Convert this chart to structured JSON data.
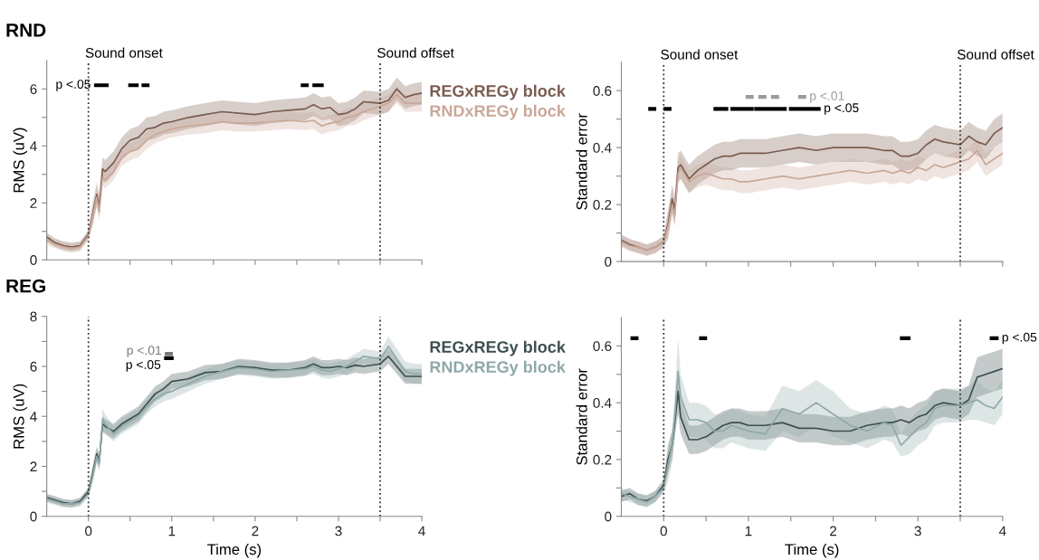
{
  "chart_data": [
    {
      "type": "line",
      "title": "RND",
      "ylabel": "RMS (uV)",
      "legend": "right",
      "tick_labels": "y",
      "xlim": [
        -0.5,
        4
      ],
      "ylim": [
        0,
        7
      ],
      "xticks": [
        0,
        0.5,
        1,
        1.5,
        2,
        2.5,
        3,
        3.5,
        4
      ],
      "yticks": [
        0,
        {
          "value": 1,
          "label": null
        },
        2,
        {
          "value": 3,
          "label": null
        },
        4,
        {
          "value": 5,
          "label": null
        },
        6
      ],
      "x": [
        -0.5,
        -0.4,
        -0.3,
        -0.2,
        -0.1,
        0,
        0.05,
        0.1,
        0.13,
        0.17,
        0.2,
        0.3,
        0.4,
        0.5,
        0.6,
        0.7,
        0.8,
        0.9,
        1.0,
        1.2,
        1.4,
        1.6,
        1.8,
        2.0,
        2.2,
        2.4,
        2.6,
        2.7,
        2.8,
        2.9,
        3.0,
        3.1,
        3.2,
        3.3,
        3.5,
        3.6,
        3.7,
        3.8,
        3.9,
        4.0
      ],
      "series": [
        {
          "name": "REGxREGy block",
          "color": "#7a5c4f",
          "values": [
            0.8,
            0.6,
            0.5,
            0.45,
            0.5,
            0.9,
            1.6,
            2.3,
            1.9,
            3.2,
            3.1,
            3.4,
            3.9,
            4.2,
            4.3,
            4.6,
            4.65,
            4.8,
            4.85,
            5.0,
            5.1,
            5.2,
            5.15,
            5.1,
            5.2,
            5.25,
            5.3,
            5.45,
            5.3,
            5.35,
            5.1,
            5.15,
            5.3,
            5.55,
            5.5,
            5.6,
            6.0,
            5.7,
            5.8,
            5.85
          ],
          "lower": [
            0.65,
            0.45,
            0.35,
            0.3,
            0.35,
            0.75,
            1.2,
            1.9,
            1.5,
            2.8,
            2.7,
            3.0,
            3.5,
            3.8,
            3.9,
            4.2,
            4.25,
            4.4,
            4.45,
            4.6,
            4.7,
            4.8,
            4.75,
            4.7,
            4.8,
            4.85,
            4.9,
            5.05,
            4.9,
            4.95,
            4.7,
            4.75,
            4.9,
            5.15,
            5.1,
            5.2,
            5.6,
            5.3,
            5.4,
            5.45
          ],
          "upper": [
            0.95,
            0.75,
            0.65,
            0.6,
            0.65,
            1.05,
            2.0,
            2.7,
            2.3,
            3.6,
            3.5,
            3.8,
            4.3,
            4.6,
            4.7,
            5.0,
            5.05,
            5.2,
            5.25,
            5.4,
            5.5,
            5.6,
            5.55,
            5.5,
            5.6,
            5.65,
            5.7,
            5.85,
            5.7,
            5.75,
            5.5,
            5.55,
            5.7,
            5.95,
            5.9,
            6.0,
            6.4,
            6.1,
            6.2,
            6.25
          ]
        },
        {
          "name": "RNDxREGy block",
          "color": "#c9a797",
          "values": [
            0.7,
            0.55,
            0.45,
            0.4,
            0.45,
            0.85,
            1.5,
            2.2,
            1.7,
            2.9,
            2.8,
            3.1,
            3.6,
            3.8,
            3.9,
            4.2,
            4.4,
            4.5,
            4.6,
            4.7,
            4.75,
            4.85,
            4.8,
            4.8,
            4.85,
            4.9,
            4.85,
            4.9,
            4.7,
            4.8,
            4.85,
            5.0,
            5.05,
            5.2,
            5.4,
            5.5,
            5.8,
            5.5,
            5.5,
            5.5
          ],
          "lower": [
            0.55,
            0.4,
            0.3,
            0.25,
            0.3,
            0.7,
            1.2,
            1.9,
            1.4,
            2.6,
            2.5,
            2.8,
            3.3,
            3.5,
            3.6,
            3.9,
            4.1,
            4.2,
            4.3,
            4.4,
            4.45,
            4.55,
            4.5,
            4.5,
            4.55,
            4.6,
            4.55,
            4.6,
            4.4,
            4.5,
            4.55,
            4.7,
            4.75,
            4.9,
            5.1,
            5.2,
            5.5,
            5.2,
            5.2,
            5.2
          ],
          "upper": [
            0.85,
            0.7,
            0.6,
            0.55,
            0.6,
            1.0,
            1.8,
            2.5,
            2.0,
            3.2,
            3.1,
            3.4,
            3.9,
            4.1,
            4.2,
            4.5,
            4.7,
            4.8,
            4.9,
            5.0,
            5.05,
            5.15,
            5.1,
            5.1,
            5.15,
            5.2,
            5.15,
            5.2,
            5.0,
            5.1,
            5.15,
            5.3,
            5.35,
            5.5,
            5.7,
            5.8,
            6.1,
            5.8,
            5.8,
            5.8
          ]
        },
        {
          "name": "p <.05",
          "color": "#000000",
          "x": [
            0.09,
            0.14,
            0.155,
            0.17,
            0.22,
            0.3,
            0.5,
            0.58,
            0.62,
            0.66,
            0.71,
            1.5,
            2.57,
            2.62,
            2.66,
            2.71,
            2.8
          ],
          "values": [
            6.13,
            6.13,
            null,
            6.13,
            6.13,
            null,
            6.13,
            6.13,
            null,
            6.13,
            6.13,
            null,
            6.13,
            6.13,
            null,
            6.13,
            6.13
          ]
        }
      ],
      "ref_lines": [
        {
          "axis": "x",
          "value": 0,
          "label": "Sound onset",
          "color": "#333333",
          "line_style": "dotted"
        },
        {
          "axis": "x",
          "value": 3.5,
          "label": "Sound offset",
          "color": "#333333",
          "line_style": "dotted"
        }
      ]
    },
    {
      "type": "line",
      "ylabel": "Standard error",
      "tick_labels": "y",
      "xlim": [
        -0.5,
        4
      ],
      "ylim": [
        0,
        0.7
      ],
      "xticks": [
        0,
        0.5,
        1,
        1.5,
        2,
        2.5,
        3,
        3.5,
        4
      ],
      "yticks": [
        0,
        {
          "value": 0.1,
          "label": null
        },
        0.2,
        {
          "value": 0.3,
          "label": null
        },
        0.4,
        {
          "value": 0.5,
          "label": null
        },
        0.6
      ],
      "x": [
        -0.5,
        -0.4,
        -0.3,
        -0.2,
        -0.1,
        0,
        0.05,
        0.1,
        0.13,
        0.17,
        0.2,
        0.3,
        0.4,
        0.5,
        0.6,
        0.7,
        0.8,
        0.9,
        1.0,
        1.2,
        1.4,
        1.6,
        1.8,
        2.0,
        2.2,
        2.4,
        2.6,
        2.7,
        2.8,
        2.9,
        3.0,
        3.1,
        3.2,
        3.3,
        3.5,
        3.6,
        3.7,
        3.8,
        3.9,
        4.0
      ],
      "series": [
        {
          "color": "#7a5c4f",
          "values": [
            0.075,
            0.06,
            0.05,
            0.04,
            0.05,
            0.07,
            0.13,
            0.22,
            0.18,
            0.33,
            0.34,
            0.29,
            0.32,
            0.34,
            0.36,
            0.37,
            0.37,
            0.38,
            0.38,
            0.38,
            0.39,
            0.4,
            0.39,
            0.4,
            0.4,
            0.4,
            0.39,
            0.39,
            0.37,
            0.37,
            0.38,
            0.41,
            0.43,
            0.42,
            0.41,
            0.44,
            0.42,
            0.41,
            0.45,
            0.47
          ],
          "lower": [
            0.055,
            0.04,
            0.03,
            0.02,
            0.03,
            0.05,
            0.08,
            0.17,
            0.13,
            0.28,
            0.29,
            0.24,
            0.27,
            0.29,
            0.31,
            0.32,
            0.32,
            0.33,
            0.33,
            0.33,
            0.34,
            0.35,
            0.34,
            0.35,
            0.35,
            0.35,
            0.34,
            0.34,
            0.32,
            0.32,
            0.33,
            0.36,
            0.38,
            0.37,
            0.36,
            0.39,
            0.37,
            0.36,
            0.4,
            0.42
          ],
          "upper": [
            0.095,
            0.08,
            0.07,
            0.06,
            0.07,
            0.09,
            0.18,
            0.27,
            0.23,
            0.38,
            0.39,
            0.34,
            0.37,
            0.39,
            0.41,
            0.42,
            0.42,
            0.43,
            0.43,
            0.43,
            0.44,
            0.45,
            0.44,
            0.45,
            0.45,
            0.45,
            0.44,
            0.44,
            0.42,
            0.42,
            0.43,
            0.46,
            0.48,
            0.47,
            0.46,
            0.49,
            0.47,
            0.46,
            0.5,
            0.52
          ]
        },
        {
          "color": "#c9a797",
          "values": [
            0.07,
            0.055,
            0.05,
            0.04,
            0.05,
            0.07,
            0.12,
            0.2,
            0.16,
            0.31,
            0.33,
            0.28,
            0.3,
            0.31,
            0.3,
            0.29,
            0.29,
            0.28,
            0.28,
            0.29,
            0.3,
            0.29,
            0.3,
            0.31,
            0.32,
            0.31,
            0.32,
            0.31,
            0.32,
            0.31,
            0.33,
            0.32,
            0.34,
            0.33,
            0.35,
            0.36,
            0.39,
            0.34,
            0.36,
            0.38
          ],
          "lower": [
            0.05,
            0.035,
            0.03,
            0.02,
            0.03,
            0.05,
            0.08,
            0.16,
            0.12,
            0.27,
            0.29,
            0.24,
            0.26,
            0.27,
            0.26,
            0.25,
            0.25,
            0.24,
            0.24,
            0.25,
            0.26,
            0.25,
            0.26,
            0.27,
            0.28,
            0.27,
            0.28,
            0.27,
            0.28,
            0.27,
            0.29,
            0.28,
            0.3,
            0.29,
            0.31,
            0.32,
            0.35,
            0.3,
            0.32,
            0.34
          ],
          "upper": [
            0.09,
            0.075,
            0.07,
            0.06,
            0.07,
            0.09,
            0.16,
            0.24,
            0.2,
            0.35,
            0.37,
            0.32,
            0.34,
            0.35,
            0.34,
            0.33,
            0.33,
            0.32,
            0.32,
            0.33,
            0.34,
            0.33,
            0.34,
            0.35,
            0.36,
            0.35,
            0.36,
            0.35,
            0.36,
            0.35,
            0.37,
            0.36,
            0.38,
            0.37,
            0.39,
            0.4,
            0.43,
            0.38,
            0.4,
            0.42
          ]
        },
        {
          "name": "p <.01",
          "color": "#9a9a9a",
          "x": [
            0.99,
            1.04,
            1.1,
            1.14,
            1.19,
            1.25,
            1.29,
            1.34,
            1.5,
            1.61,
            1.66
          ],
          "values": [
            0.578,
            0.578,
            null,
            0.578,
            0.578,
            null,
            0.578,
            0.578,
            null,
            0.578,
            0.578
          ]
        },
        {
          "name": "p <.05",
          "color": "#000000",
          "x": [
            -0.16,
            -0.11,
            0,
            0.02,
            0.07,
            0.3,
            0.61,
            0.74,
            0.78,
            0.81,
            1.04,
            1.06,
            1.09,
            1.43,
            1.46,
            1.5,
            1.58,
            1.6,
            1.61,
            1.83
          ],
          "values": [
            0.536,
            0.536,
            null,
            0.536,
            0.536,
            null,
            0.536,
            0.536,
            null,
            0.536,
            0.536,
            null,
            0.536,
            0.536,
            null,
            0.536,
            0.536,
            null,
            0.536,
            0.536
          ]
        }
      ],
      "ref_lines": [
        {
          "axis": "x",
          "value": 0,
          "label": "Sound onset",
          "color": "#333333",
          "line_style": "dotted"
        },
        {
          "axis": "x",
          "value": 3.5,
          "label": "Sound offset",
          "color": "#333333",
          "line_style": "dotted"
        }
      ]
    },
    {
      "type": "line",
      "title": "REG",
      "ylabel": "RMS (uV)",
      "xlabel": "Time (s)",
      "legend": "right",
      "xlim": [
        -0.5,
        4
      ],
      "ylim": [
        0,
        8
      ],
      "xticks": [
        0,
        {
          "value": 0.5,
          "label": null
        },
        1,
        {
          "value": 1.5,
          "label": null
        },
        2,
        {
          "value": 2.5,
          "label": null
        },
        3,
        {
          "value": 3.5,
          "label": null
        },
        4
      ],
      "yticks": [
        0,
        {
          "value": 1,
          "label": null
        },
        2,
        {
          "value": 3,
          "label": null
        },
        4,
        {
          "value": 5,
          "label": null
        },
        6,
        {
          "value": 7,
          "label": null
        },
        8
      ],
      "x": [
        -0.5,
        -0.4,
        -0.3,
        -0.2,
        -0.1,
        0,
        0.05,
        0.1,
        0.13,
        0.17,
        0.2,
        0.3,
        0.4,
        0.5,
        0.6,
        0.7,
        0.8,
        0.9,
        1.0,
        1.2,
        1.4,
        1.6,
        1.8,
        2.0,
        2.2,
        2.4,
        2.6,
        2.7,
        2.8,
        2.9,
        3.0,
        3.1,
        3.2,
        3.3,
        3.5,
        3.6,
        3.7,
        3.8,
        3.9,
        4.0
      ],
      "series": [
        {
          "name": "REGxREGy block",
          "color": "#3d4f4f",
          "values": [
            0.75,
            0.65,
            0.55,
            0.5,
            0.6,
            1.0,
            1.7,
            2.5,
            2.2,
            3.7,
            3.6,
            3.4,
            3.7,
            3.9,
            4.1,
            4.5,
            4.9,
            5.1,
            5.4,
            5.5,
            5.75,
            5.8,
            6.0,
            5.95,
            5.85,
            5.85,
            5.95,
            6.1,
            5.95,
            5.95,
            6.0,
            5.95,
            6.05,
            6.0,
            6.1,
            6.4,
            6.0,
            5.6,
            5.6,
            5.6
          ],
          "lower": [
            0.6,
            0.5,
            0.4,
            0.35,
            0.45,
            0.85,
            1.4,
            2.2,
            1.9,
            3.4,
            3.3,
            3.1,
            3.4,
            3.6,
            3.8,
            4.2,
            4.6,
            4.8,
            5.1,
            5.2,
            5.45,
            5.5,
            5.7,
            5.65,
            5.55,
            5.55,
            5.65,
            5.8,
            5.65,
            5.65,
            5.7,
            5.65,
            5.75,
            5.7,
            5.8,
            6.1,
            5.7,
            5.3,
            5.3,
            5.3
          ],
          "upper": [
            0.9,
            0.8,
            0.7,
            0.65,
            0.75,
            1.15,
            2.0,
            2.8,
            2.5,
            4.0,
            3.9,
            3.7,
            4.0,
            4.2,
            4.4,
            4.8,
            5.2,
            5.4,
            5.7,
            5.8,
            6.05,
            6.1,
            6.3,
            6.25,
            6.15,
            6.15,
            6.25,
            6.4,
            6.25,
            6.25,
            6.3,
            6.25,
            6.35,
            6.3,
            6.4,
            6.7,
            6.3,
            5.9,
            5.9,
            5.9
          ]
        },
        {
          "name": "RNDxREGy block",
          "color": "#8fa8a8",
          "values": [
            0.7,
            0.6,
            0.5,
            0.5,
            0.55,
            0.9,
            1.6,
            2.4,
            2.1,
            3.9,
            3.7,
            3.3,
            3.6,
            3.8,
            4.0,
            4.4,
            4.7,
            4.9,
            5.0,
            5.3,
            5.6,
            5.8,
            5.95,
            5.9,
            5.8,
            5.85,
            5.9,
            6.0,
            5.85,
            5.8,
            5.9,
            6.0,
            6.2,
            6.4,
            6.3,
            6.8,
            6.3,
            5.8,
            5.7,
            5.7
          ],
          "lower": [
            0.55,
            0.45,
            0.35,
            0.35,
            0.4,
            0.75,
            1.3,
            2.1,
            1.8,
            3.5,
            3.3,
            3.0,
            3.3,
            3.5,
            3.7,
            4.1,
            4.4,
            4.6,
            4.7,
            5.0,
            5.3,
            5.5,
            5.65,
            5.6,
            5.5,
            5.55,
            5.6,
            5.7,
            5.55,
            5.5,
            5.6,
            5.7,
            5.9,
            6.1,
            6.0,
            6.4,
            5.9,
            5.4,
            5.3,
            5.3
          ],
          "upper": [
            0.85,
            0.75,
            0.65,
            0.65,
            0.7,
            1.05,
            1.9,
            2.7,
            2.4,
            4.3,
            4.1,
            3.6,
            3.9,
            4.1,
            4.3,
            4.7,
            5.0,
            5.2,
            5.3,
            5.6,
            5.9,
            6.1,
            6.25,
            6.2,
            6.1,
            6.15,
            6.2,
            6.3,
            6.15,
            6.1,
            6.2,
            6.3,
            6.5,
            6.7,
            6.6,
            7.2,
            6.7,
            6.2,
            6.1,
            6.1
          ]
        },
        {
          "name": "p <.01",
          "color": "#777777",
          "x": [
            0.94,
            0.99
          ],
          "values": [
            6.5,
            6.5
          ]
        },
        {
          "name": "p <.05",
          "color": "#000000",
          "x": [
            0.93,
            1.0
          ],
          "values": [
            6.33,
            6.33
          ]
        }
      ],
      "ref_lines": [
        {
          "axis": "x",
          "value": 0,
          "color": "#333333",
          "line_style": "dotted"
        },
        {
          "axis": "x",
          "value": 3.5,
          "color": "#333333",
          "line_style": "dotted"
        }
      ]
    },
    {
      "type": "line",
      "ylabel": "Standard error",
      "xlabel": "Time (s)",
      "xlim": [
        -0.5,
        4
      ],
      "ylim": [
        0,
        0.7
      ],
      "xticks": [
        0,
        {
          "value": 0.5,
          "label": null
        },
        1,
        {
          "value": 1.5,
          "label": null
        },
        2,
        {
          "value": 2.5,
          "label": null
        },
        3,
        {
          "value": 3.5,
          "label": null
        },
        4
      ],
      "yticks": [
        0,
        {
          "value": 0.1,
          "label": null
        },
        0.2,
        {
          "value": 0.3,
          "label": null
        },
        0.4,
        {
          "value": 0.5,
          "label": null
        },
        0.6
      ],
      "x": [
        -0.5,
        -0.4,
        -0.3,
        -0.2,
        -0.1,
        0,
        0.05,
        0.1,
        0.13,
        0.17,
        0.2,
        0.3,
        0.4,
        0.5,
        0.6,
        0.7,
        0.8,
        0.9,
        1.0,
        1.2,
        1.4,
        1.6,
        1.8,
        2.0,
        2.2,
        2.4,
        2.6,
        2.7,
        2.8,
        2.9,
        3.0,
        3.1,
        3.2,
        3.3,
        3.5,
        3.6,
        3.7,
        3.8,
        3.9,
        4.0
      ],
      "series": [
        {
          "color": "#3d4f4f",
          "values": [
            0.07,
            0.08,
            0.06,
            0.055,
            0.07,
            0.11,
            0.2,
            0.25,
            0.33,
            0.44,
            0.35,
            0.27,
            0.27,
            0.28,
            0.3,
            0.32,
            0.33,
            0.33,
            0.32,
            0.32,
            0.33,
            0.31,
            0.31,
            0.3,
            0.3,
            0.32,
            0.33,
            0.33,
            0.34,
            0.33,
            0.35,
            0.36,
            0.39,
            0.4,
            0.39,
            0.41,
            0.49,
            0.5,
            0.51,
            0.52
          ],
          "lower": [
            0.05,
            0.06,
            0.04,
            0.035,
            0.05,
            0.09,
            0.15,
            0.2,
            0.28,
            0.36,
            0.29,
            0.22,
            0.22,
            0.23,
            0.25,
            0.27,
            0.28,
            0.28,
            0.27,
            0.27,
            0.28,
            0.26,
            0.26,
            0.25,
            0.25,
            0.27,
            0.28,
            0.28,
            0.29,
            0.28,
            0.3,
            0.31,
            0.34,
            0.35,
            0.34,
            0.36,
            0.42,
            0.43,
            0.44,
            0.45
          ],
          "upper": [
            0.09,
            0.1,
            0.08,
            0.075,
            0.09,
            0.13,
            0.25,
            0.3,
            0.38,
            0.52,
            0.41,
            0.32,
            0.32,
            0.33,
            0.35,
            0.37,
            0.38,
            0.38,
            0.37,
            0.37,
            0.38,
            0.36,
            0.36,
            0.35,
            0.35,
            0.37,
            0.38,
            0.38,
            0.39,
            0.38,
            0.4,
            0.41,
            0.44,
            0.45,
            0.44,
            0.46,
            0.56,
            0.57,
            0.58,
            0.59
          ]
        },
        {
          "color": "#8fa8a8",
          "values": [
            0.08,
            0.07,
            0.06,
            0.05,
            0.07,
            0.1,
            0.18,
            0.25,
            0.35,
            0.51,
            0.42,
            0.34,
            0.34,
            0.33,
            0.3,
            0.3,
            0.32,
            0.31,
            0.3,
            0.29,
            0.38,
            0.36,
            0.4,
            0.36,
            0.32,
            0.3,
            0.33,
            0.32,
            0.25,
            0.28,
            0.31,
            0.33,
            0.38,
            0.39,
            0.39,
            0.4,
            0.41,
            0.39,
            0.38,
            0.42
          ],
          "lower": [
            0.06,
            0.05,
            0.04,
            0.03,
            0.05,
            0.08,
            0.12,
            0.19,
            0.27,
            0.39,
            0.34,
            0.28,
            0.28,
            0.27,
            0.24,
            0.24,
            0.26,
            0.25,
            0.24,
            0.23,
            0.3,
            0.28,
            0.32,
            0.28,
            0.26,
            0.24,
            0.27,
            0.26,
            0.21,
            0.22,
            0.25,
            0.27,
            0.32,
            0.33,
            0.33,
            0.34,
            0.34,
            0.33,
            0.32,
            0.36
          ],
          "upper": [
            0.1,
            0.09,
            0.08,
            0.07,
            0.09,
            0.12,
            0.24,
            0.31,
            0.43,
            0.63,
            0.5,
            0.4,
            0.4,
            0.39,
            0.36,
            0.36,
            0.38,
            0.37,
            0.36,
            0.35,
            0.46,
            0.44,
            0.48,
            0.44,
            0.38,
            0.36,
            0.39,
            0.38,
            0.29,
            0.34,
            0.37,
            0.39,
            0.44,
            0.45,
            0.45,
            0.46,
            0.48,
            0.45,
            0.44,
            0.48
          ]
        },
        {
          "name": "p <.05",
          "color": "#000000",
          "x": [
            -0.37,
            -0.32,
            0,
            0.44,
            0.49,
            1.0,
            2.81,
            2.89,
            3.2,
            3.87,
            3.93
          ],
          "values": [
            0.627,
            0.627,
            null,
            0.627,
            0.627,
            null,
            0.627,
            0.627,
            null,
            0.627,
            0.627
          ]
        }
      ],
      "ref_lines": [
        {
          "axis": "x",
          "value": 0,
          "color": "#333333",
          "line_style": "dotted"
        },
        {
          "axis": "x",
          "value": 3.5,
          "color": "#333333",
          "line_style": "dotted"
        }
      ]
    }
  ]
}
